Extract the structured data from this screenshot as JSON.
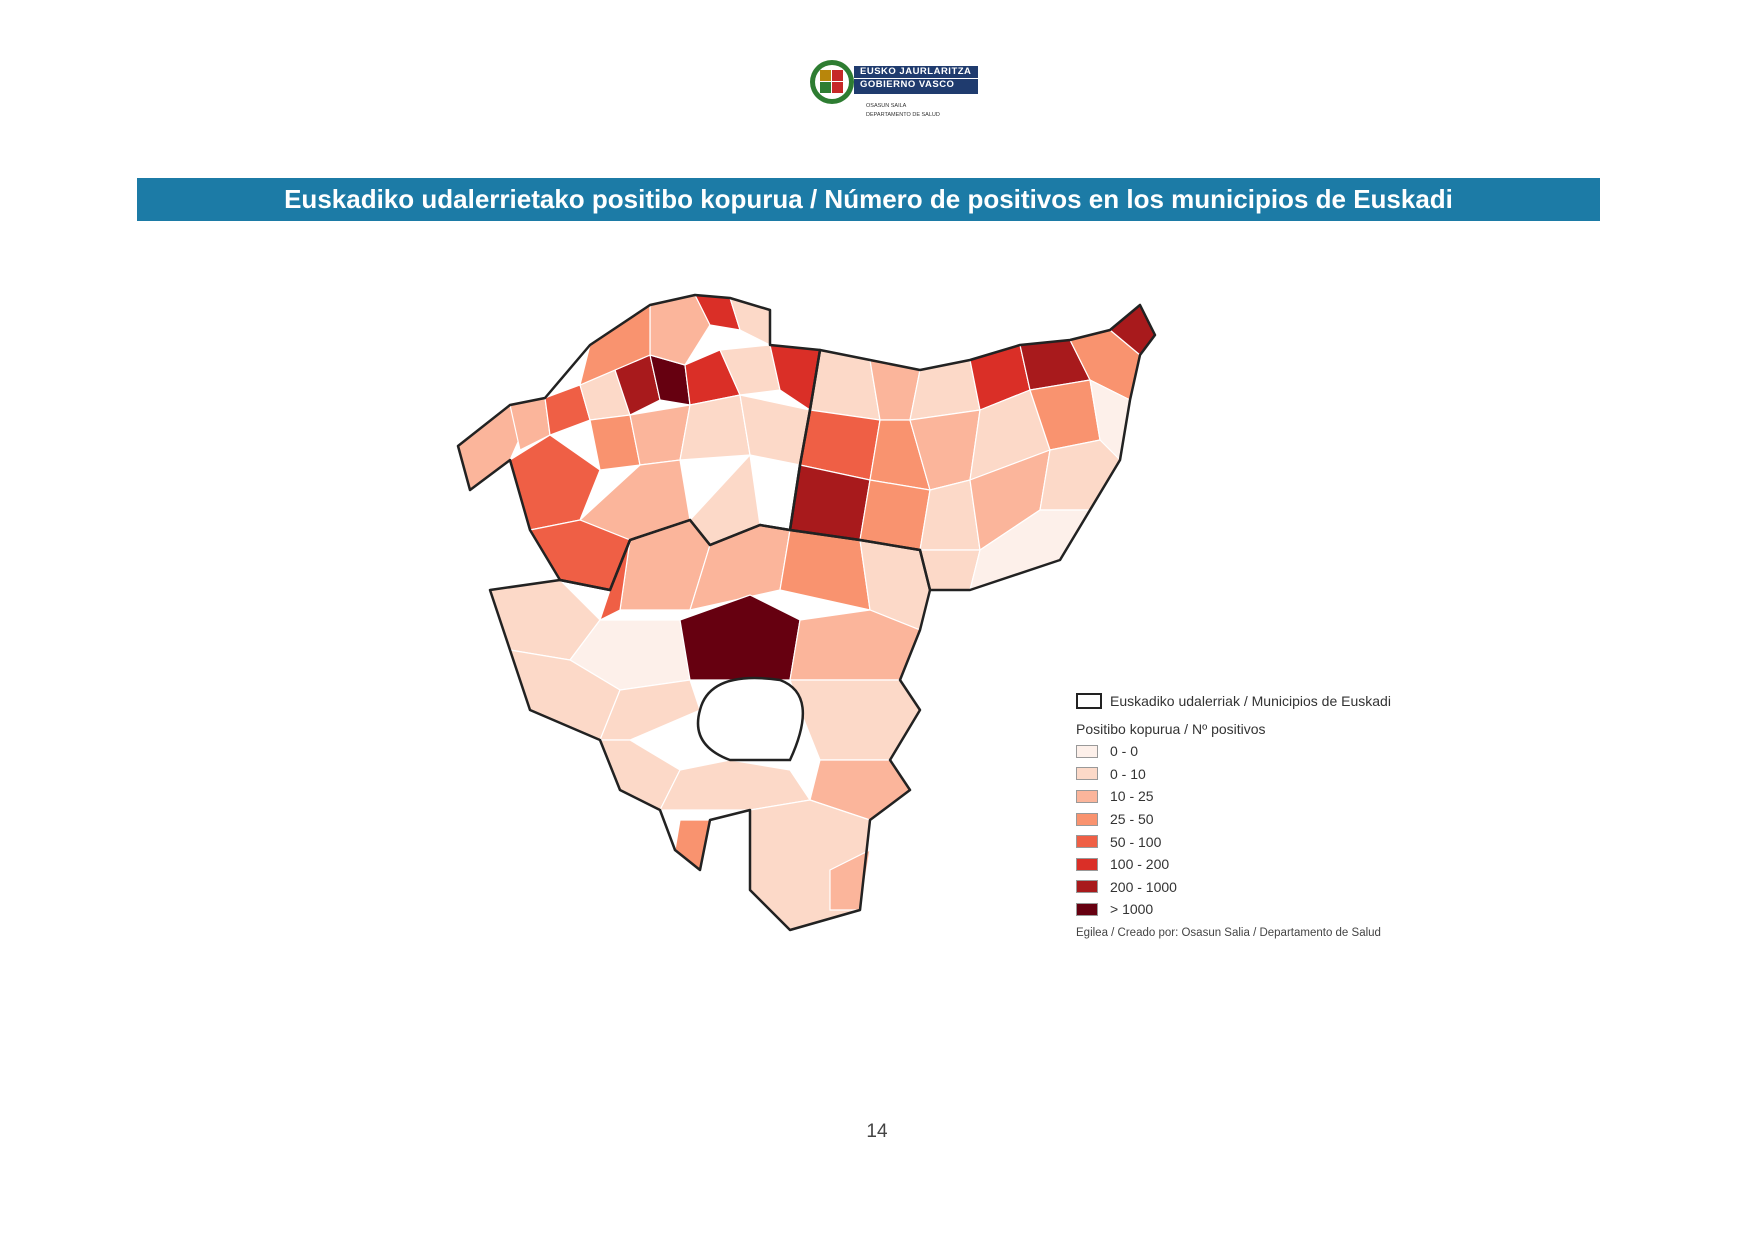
{
  "header": {
    "logo_line1": "EUSKO JAURLARITZA",
    "logo_line2": "GOBIERNO VASCO",
    "dept_line1": "OSASUN SAILA",
    "dept_line2": "DEPARTAMENTO DE SALUD"
  },
  "title": "Euskadiko udalerrietako positibo kopurua / Número de positivos en los municipios de Euskadi",
  "legend": {
    "boundary_label": "Euskadiko udalerriak / Municipios de Euskadi",
    "heading": "Positibo kopurua / Nº positivos",
    "classes": [
      {
        "label": "0 - 0",
        "color": "#fdf0ea"
      },
      {
        "label": "0 - 10",
        "color": "#fcd9c8"
      },
      {
        "label": "10 - 25",
        "color": "#fbb59b"
      },
      {
        "label": "25 - 50",
        "color": "#f9936f"
      },
      {
        "label": "50 - 100",
        "color": "#ef5f45"
      },
      {
        "label": "100 - 200",
        "color": "#da2f27"
      },
      {
        "label": "200 - 1000",
        "color": "#a81a1c"
      },
      {
        "label": "> 1000",
        "color": "#660010"
      }
    ],
    "credit": "Egilea / Creado por: Osasun Salia / Departamento de Salud"
  },
  "page_number": "14"
}
